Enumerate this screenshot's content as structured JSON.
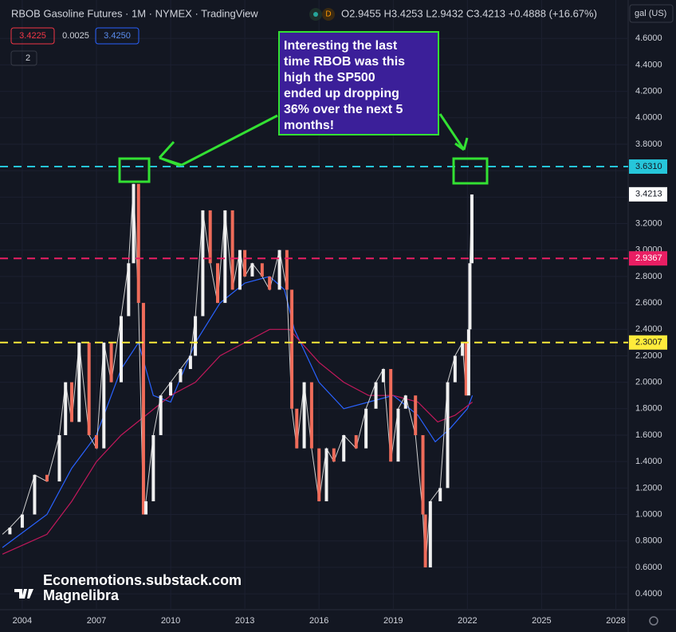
{
  "chart_data": {
    "type": "candlestick",
    "title": "RBOB Gasoline Futures · 1M · NYMEX · TradingView",
    "ohlc": "O2.9455 H3.4253 L2.9432 C3.4213 +0.4888 (+16.67%)",
    "bid": "3.4225",
    "spread": "0.0025",
    "ask": "3.4250",
    "indicators_count": "2",
    "unit": "gal (US)",
    "annotation": [
      "Interesting the last",
      "time RBOB was this",
      "high the SP500",
      "ended up dropping",
      "36% over the next 5",
      "months!"
    ],
    "watermark": [
      "Econemotions.substack.com",
      "Magnelibra"
    ],
    "xlim": [
      2003.1,
      2028.5
    ],
    "xticks": [
      2004,
      2007,
      2010,
      2013,
      2016,
      2019,
      2022,
      2025,
      2028
    ],
    "ylim": [
      0.28,
      4.71
    ],
    "yticks": [
      {
        "value": 0.4,
        "label": "0.4000"
      },
      {
        "value": 0.6,
        "label": "0.6000"
      },
      {
        "value": 0.8,
        "label": "0.8000"
      },
      {
        "value": 1.0,
        "label": "1.0000"
      },
      {
        "value": 1.2,
        "label": "1.2000"
      },
      {
        "value": 1.4,
        "label": "1.4000"
      },
      {
        "value": 1.6,
        "label": "1.6000"
      },
      {
        "value": 1.8,
        "label": "1.8000"
      },
      {
        "value": 2.0,
        "label": "2.0000"
      },
      {
        "value": 2.2,
        "label": "2.2000"
      },
      {
        "value": 2.4,
        "label": "2.4000"
      },
      {
        "value": 2.6,
        "label": "2.6000"
      },
      {
        "value": 2.8,
        "label": "2.8000"
      },
      {
        "value": 3.0,
        "label": "3.0000"
      },
      {
        "value": 3.2,
        "label": "3.2000"
      },
      {
        "value": 3.4,
        "label": "3.4000"
      },
      {
        "value": 3.6,
        "label": "3.6000"
      },
      {
        "value": 3.8,
        "label": "3.8000"
      },
      {
        "value": 4.0,
        "label": "4.0000"
      },
      {
        "value": 4.2,
        "label": "4.2000"
      },
      {
        "value": 4.4,
        "label": "4.4000"
      },
      {
        "value": 4.6,
        "label": "4.6000"
      }
    ],
    "grid": true,
    "levels": [
      {
        "value": 3.631,
        "label": "3.6310",
        "color": "#26c6da"
      },
      {
        "value": 2.9367,
        "label": "2.9367",
        "color": "#e91e63"
      },
      {
        "value": 2.3007,
        "label": "2.3007",
        "color": "#ffeb3b"
      }
    ],
    "last_price": {
      "value": 3.4213,
      "label": "3.4213"
    },
    "up_color": "#f0f0f0",
    "down_color": "#ef6c5a",
    "series": [
      {
        "name": "RBOB",
        "color": "#d0d0d0",
        "x": [
          2003.2,
          2003.5,
          2004.0,
          2004.5,
          2005.0,
          2005.5,
          2005.75,
          2006.0,
          2006.3,
          2006.7,
          2007.0,
          2007.3,
          2007.6,
          2008.0,
          2008.3,
          2008.5,
          2008.7,
          2008.9,
          2009.0,
          2009.3,
          2009.6,
          2010.0,
          2010.4,
          2010.8,
          2011.0,
          2011.3,
          2011.6,
          2011.9,
          2012.2,
          2012.5,
          2012.8,
          2013.0,
          2013.3,
          2013.7,
          2014.0,
          2014.4,
          2014.7,
          2014.9,
          2015.1,
          2015.4,
          2015.7,
          2016.0,
          2016.3,
          2016.6,
          2017.0,
          2017.5,
          2017.9,
          2018.3,
          2018.6,
          2018.9,
          2019.2,
          2019.5,
          2019.9,
          2020.2,
          2020.3,
          2020.5,
          2020.9,
          2021.2,
          2021.5,
          2021.8,
          2021.95,
          2022.05,
          2022.1,
          2022.18
        ],
        "values": [
          0.85,
          0.9,
          1.0,
          1.3,
          1.25,
          1.6,
          2.0,
          1.7,
          2.3,
          1.6,
          1.5,
          2.3,
          2.0,
          2.5,
          2.9,
          3.5,
          2.6,
          1.0,
          1.1,
          1.6,
          1.9,
          2.0,
          2.1,
          2.2,
          2.5,
          3.3,
          2.9,
          2.6,
          3.3,
          2.7,
          3.0,
          2.8,
          2.9,
          2.8,
          2.7,
          3.0,
          2.7,
          1.8,
          1.5,
          2.0,
          1.5,
          1.1,
          1.5,
          1.4,
          1.6,
          1.5,
          1.8,
          2.0,
          2.1,
          1.4,
          1.8,
          1.9,
          1.6,
          1.0,
          0.6,
          1.1,
          1.2,
          2.0,
          2.2,
          2.3,
          1.9,
          2.4,
          2.9,
          3.42
        ]
      },
      {
        "name": "MA fast",
        "color": "#2962ff",
        "x": [
          2003.2,
          2005,
          2006,
          2007,
          2008,
          2008.7,
          2009.3,
          2010,
          2011,
          2012,
          2013,
          2014,
          2014.6,
          2015,
          2016,
          2017,
          2018,
          2019,
          2020,
          2020.7,
          2021.3,
          2022,
          2022.2
        ],
        "values": [
          0.75,
          1.0,
          1.35,
          1.6,
          2.1,
          2.3,
          1.9,
          1.85,
          2.3,
          2.6,
          2.75,
          2.8,
          2.7,
          2.4,
          2.0,
          1.8,
          1.85,
          1.9,
          1.75,
          1.55,
          1.65,
          1.8,
          1.9
        ]
      },
      {
        "name": "MA slow",
        "color": "#c2185b",
        "x": [
          2003.2,
          2005,
          2006,
          2007,
          2008,
          2009,
          2010,
          2011,
          2012,
          2013,
          2014,
          2014.8,
          2016,
          2017,
          2018,
          2019,
          2020,
          2020.8,
          2021.5,
          2022.2
        ],
        "values": [
          0.7,
          0.85,
          1.1,
          1.4,
          1.6,
          1.75,
          1.9,
          2.0,
          2.2,
          2.3,
          2.4,
          2.4,
          2.15,
          2.0,
          1.9,
          1.9,
          1.85,
          1.7,
          1.75,
          1.85
        ]
      }
    ]
  }
}
